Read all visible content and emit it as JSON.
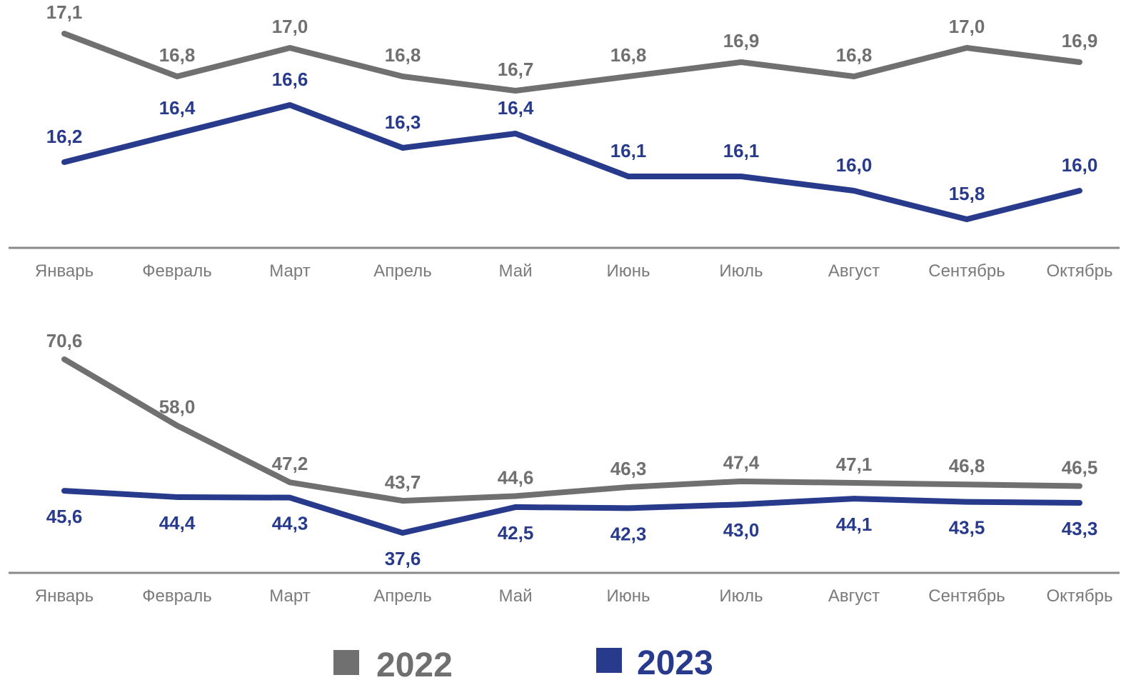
{
  "chart_data": [
    {
      "type": "line",
      "categories": [
        "Январь",
        "Февраль",
        "Март",
        "Апрель",
        "Май",
        "Июнь",
        "Июль",
        "Август",
        "Сентябрь",
        "Октябрь"
      ],
      "series": [
        {
          "name": "2022",
          "color": "#707070",
          "values": [
            17.1,
            16.8,
            17.0,
            16.8,
            16.7,
            16.8,
            16.9,
            16.8,
            17.0,
            16.9
          ],
          "value_labels": [
            "17,1",
            "16,8",
            "17,0",
            "16,8",
            "16,7",
            "16,8",
            "16,9",
            "16,8",
            "17,0",
            "16,9"
          ]
        },
        {
          "name": "2023",
          "color": "#283a8c",
          "values": [
            16.2,
            16.4,
            16.6,
            16.3,
            16.4,
            16.1,
            16.1,
            16.0,
            15.8,
            16.0
          ],
          "value_labels": [
            "16,2",
            "16,4",
            "16,6",
            "16,3",
            "16,4",
            "16,1",
            "16,1",
            "16,0",
            "15,8",
            "16,0"
          ]
        }
      ],
      "ylim": [
        15.6,
        17.4
      ]
    },
    {
      "type": "line",
      "categories": [
        "Январь",
        "Февраль",
        "Март",
        "Апрель",
        "Май",
        "Июнь",
        "Июль",
        "Август",
        "Сентябрь",
        "Октябрь"
      ],
      "series": [
        {
          "name": "2022",
          "color": "#707070",
          "values": [
            70.6,
            58.0,
            47.2,
            43.7,
            44.6,
            46.3,
            47.4,
            47.1,
            46.8,
            46.5
          ],
          "value_labels": [
            "70,6",
            "58,0",
            "47,2",
            "43,7",
            "44,6",
            "46,3",
            "47,4",
            "47,1",
            "46,8",
            "46,5"
          ]
        },
        {
          "name": "2023",
          "color": "#283a8c",
          "values": [
            45.6,
            44.4,
            44.3,
            37.6,
            42.5,
            42.3,
            43.0,
            44.1,
            43.5,
            43.3
          ],
          "value_labels": [
            "45,6",
            "44,4",
            "44,3",
            "37,6",
            "42,5",
            "42,3",
            "43,0",
            "44,1",
            "43,5",
            "43,3"
          ]
        }
      ],
      "ylim": [
        30,
        82
      ]
    }
  ]
}
